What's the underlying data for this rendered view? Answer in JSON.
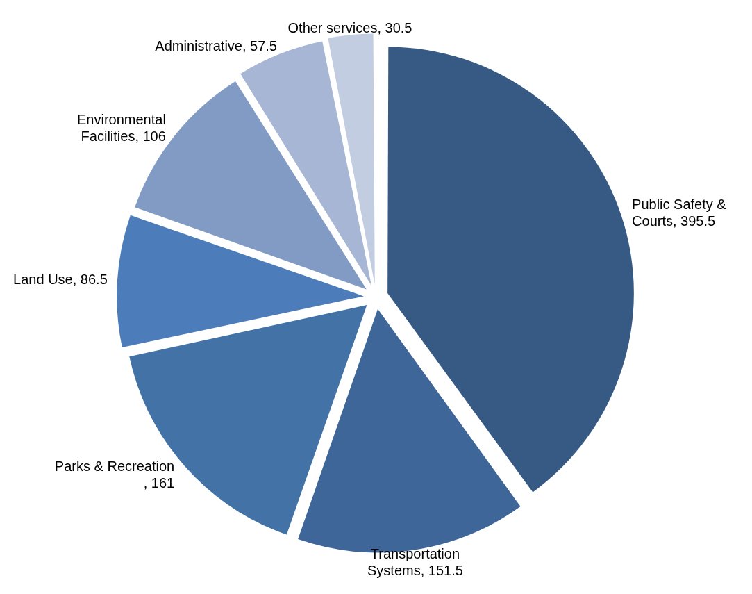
{
  "chart_data": {
    "type": "pie",
    "categories": [
      "Public Safety & Courts",
      "Transportation Systems",
      "Parks & Recreation",
      "Land Use",
      "Environmental Facilities",
      "Administrative",
      "Other services"
    ],
    "values": [
      395.5,
      151.5,
      161,
      86.5,
      106,
      57.5,
      30.5
    ],
    "colors": [
      "#375a84",
      "#3e6698",
      "#4372a6",
      "#4c7dba",
      "#819bc4",
      "#a6b6d4",
      "#c2cde1"
    ],
    "value_labels": [
      ", 395.5",
      ", 151.5",
      ", 161",
      ", 86.5",
      ", 106",
      ", 57.5",
      ", 30.5"
    ],
    "legend": false
  }
}
